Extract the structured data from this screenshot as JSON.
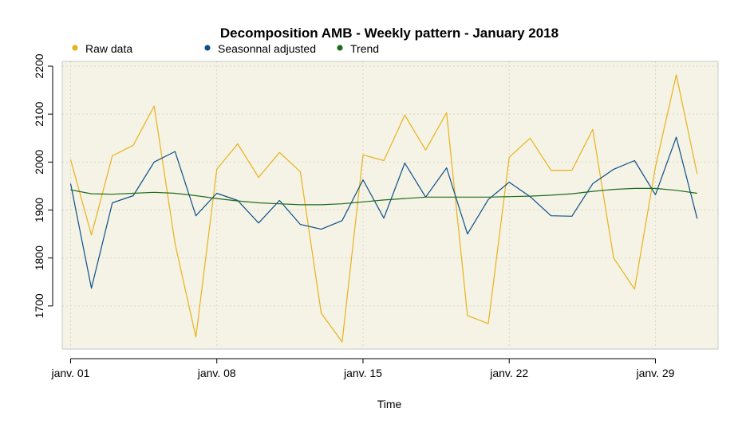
{
  "chart_data": {
    "type": "line",
    "title": "Decomposition AMB - Weekly pattern - January 2018",
    "xlabel": "Time",
    "ylabel": "",
    "x_tick_labels": [
      "janv. 01",
      "janv. 08",
      "janv. 15",
      "janv. 22",
      "janv. 29"
    ],
    "x_ticks": [
      1,
      8,
      15,
      22,
      29
    ],
    "y_ticks": [
      1700,
      1800,
      1900,
      2000,
      2100,
      2200
    ],
    "xlim": [
      0.6,
      32.0
    ],
    "ylim": [
      1610,
      2210
    ],
    "grid": true,
    "legend_position": "top",
    "background": "#f5f3e5",
    "x": [
      1,
      2,
      3,
      4,
      5,
      6,
      7,
      8,
      9,
      10,
      11,
      12,
      13,
      14,
      15,
      16,
      17,
      18,
      19,
      20,
      21,
      22,
      23,
      24,
      25,
      26,
      27,
      28,
      29,
      30,
      31
    ],
    "series": [
      {
        "name": "Raw data",
        "color": "#e8b21b",
        "values": [
          2005,
          1848,
          2013,
          2035,
          2117,
          1830,
          1635,
          1985,
          2038,
          1968,
          2020,
          1980,
          1685,
          1625,
          2015,
          2003,
          2098,
          2025,
          2103,
          1680,
          1663,
          2010,
          2050,
          1983,
          1983,
          2068,
          1800,
          1735,
          1990,
          2182,
          1975
        ]
      },
      {
        "name": "Seasonnal adjusted",
        "color": "#0b4f8a",
        "values": [
          1955,
          1737,
          1915,
          1930,
          2000,
          2022,
          1888,
          1935,
          1920,
          1873,
          1920,
          1870,
          1860,
          1878,
          1963,
          1883,
          1998,
          1927,
          1988,
          1850,
          1922,
          1958,
          1928,
          1888,
          1887,
          1955,
          1985,
          2003,
          1932,
          2052,
          1882
        ]
      },
      {
        "name": "Trend",
        "color": "#1f6b1a",
        "values": [
          1942,
          1934,
          1933,
          1935,
          1937,
          1935,
          1930,
          1924,
          1919,
          1915,
          1913,
          1911,
          1911,
          1913,
          1917,
          1921,
          1924,
          1927,
          1927,
          1927,
          1927,
          1928,
          1929,
          1931,
          1934,
          1939,
          1943,
          1945,
          1945,
          1941,
          1935
        ]
      }
    ]
  }
}
